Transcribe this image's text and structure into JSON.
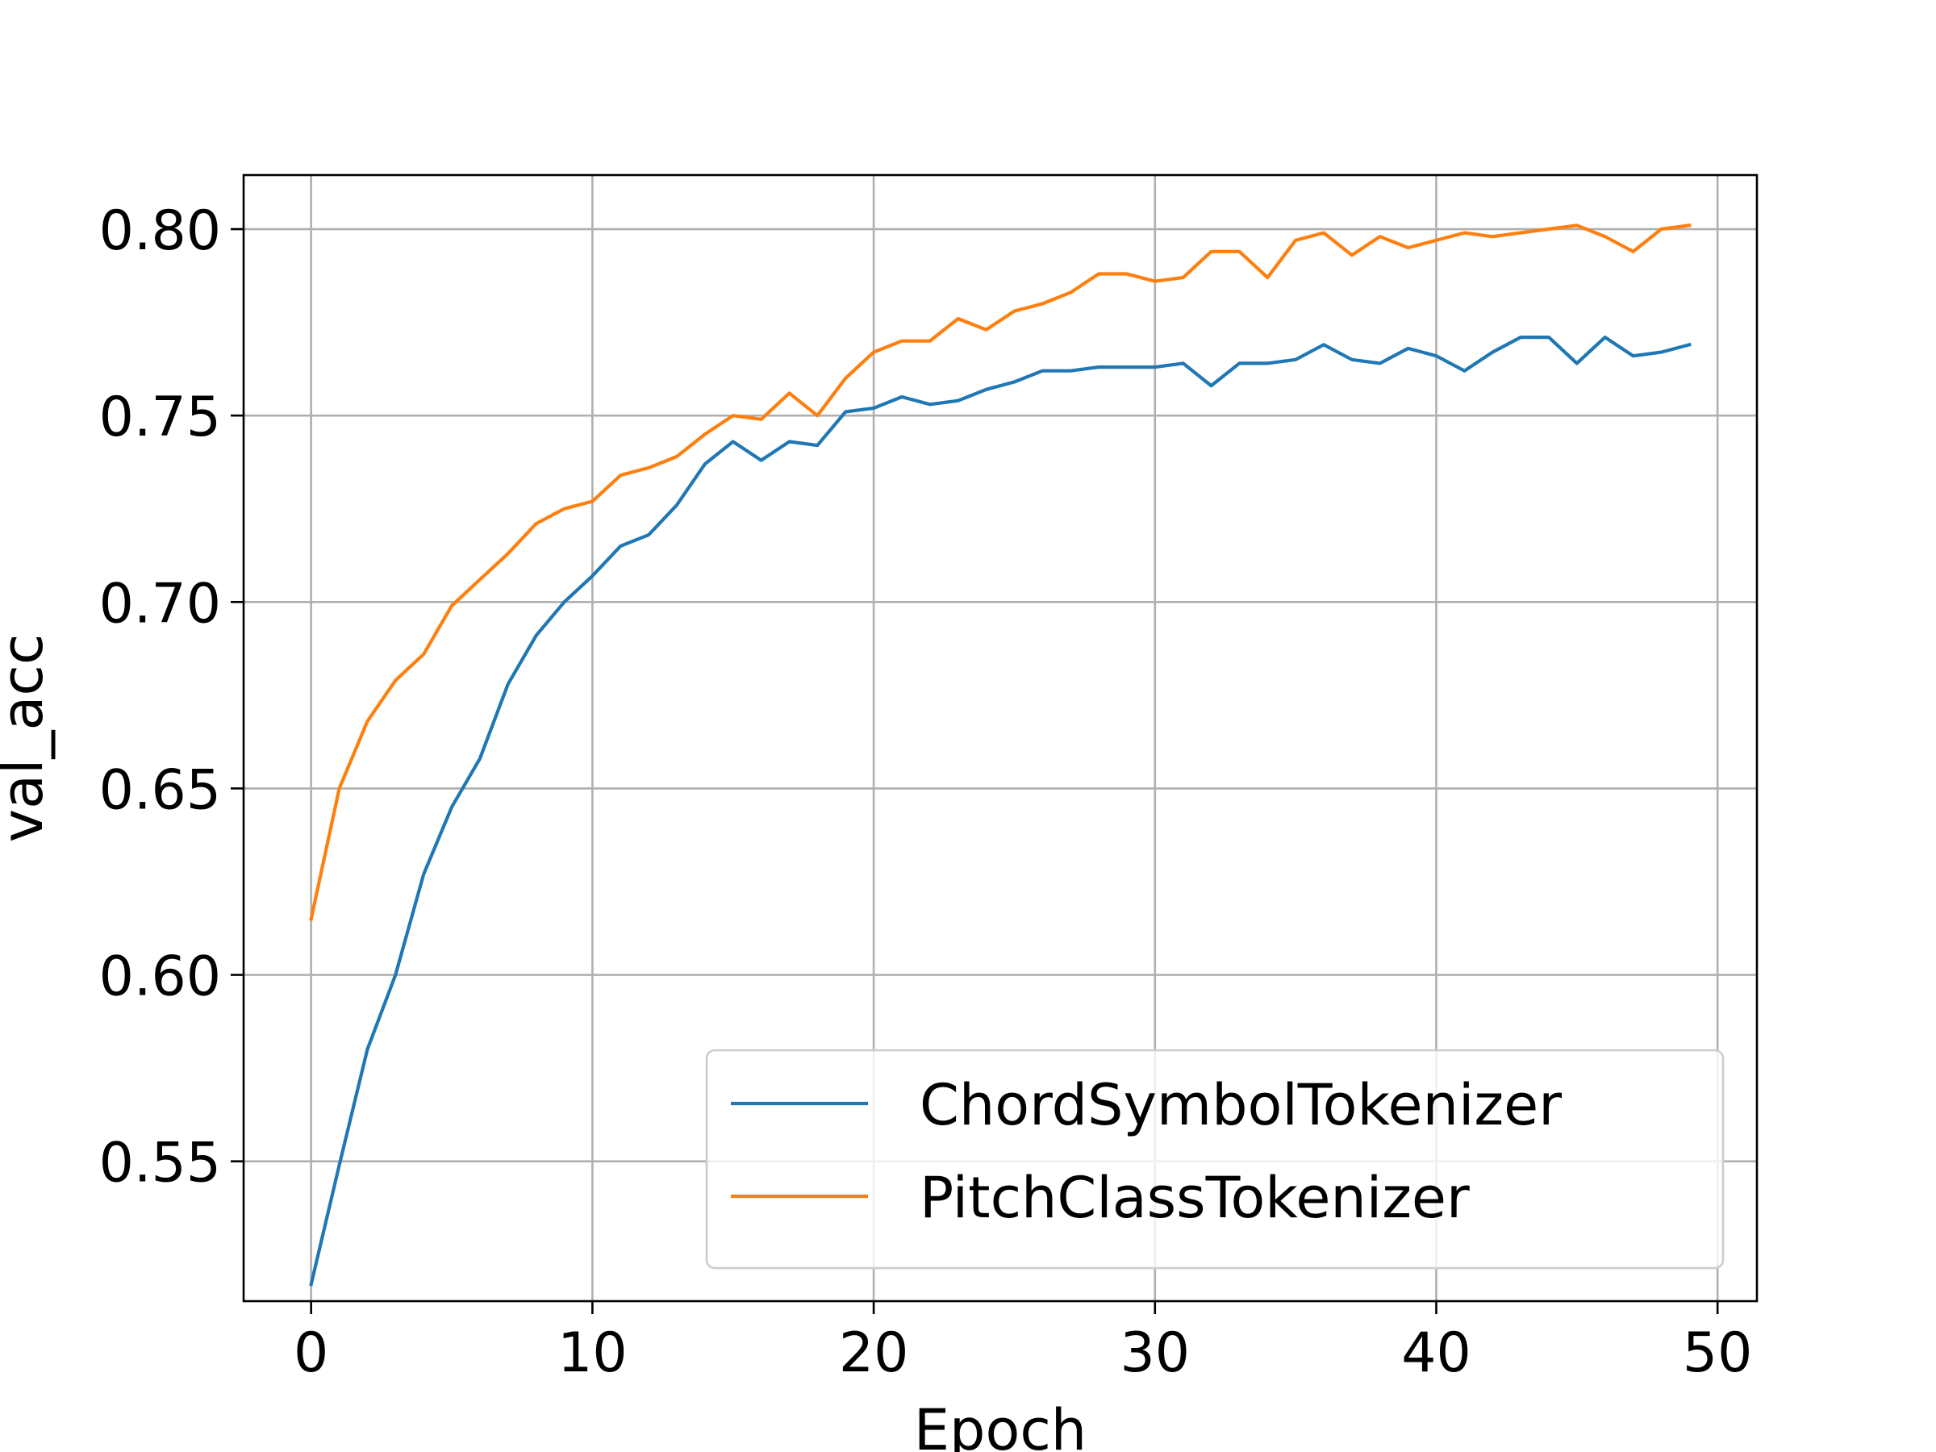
{
  "chart_data": {
    "type": "line",
    "xlabel": "Epoch",
    "ylabel": "val_acc",
    "xlim": [
      -2.4,
      51.4
    ],
    "ylim": [
      0.5125,
      0.8145
    ],
    "xticks": [
      0,
      10,
      20,
      30,
      40,
      50
    ],
    "xtick_labels": [
      "0",
      "10",
      "20",
      "30",
      "40",
      "50"
    ],
    "yticks": [
      0.55,
      0.6,
      0.65,
      0.7,
      0.75,
      0.8
    ],
    "ytick_labels": [
      "0.55",
      "0.60",
      "0.65",
      "0.70",
      "0.75",
      "0.80"
    ],
    "grid": true,
    "legend_position": "lower-right",
    "x": [
      0,
      1,
      2,
      3,
      4,
      5,
      6,
      7,
      8,
      9,
      10,
      11,
      12,
      13,
      14,
      15,
      16,
      17,
      18,
      19,
      20,
      21,
      22,
      23,
      24,
      25,
      26,
      27,
      28,
      29,
      30,
      31,
      32,
      33,
      34,
      35,
      36,
      37,
      38,
      39,
      40,
      41,
      42,
      43,
      44,
      45,
      46,
      47,
      48,
      49
    ],
    "series": [
      {
        "name": "ChordSymbolTokenizer",
        "color": "#1f77b4",
        "values": [
          0.517,
          0.549,
          0.58,
          0.6,
          0.627,
          0.645,
          0.658,
          0.678,
          0.691,
          0.7,
          0.707,
          0.715,
          0.718,
          0.726,
          0.737,
          0.743,
          0.738,
          0.743,
          0.742,
          0.751,
          0.752,
          0.755,
          0.753,
          0.754,
          0.757,
          0.759,
          0.762,
          0.762,
          0.763,
          0.763,
          0.763,
          0.764,
          0.758,
          0.764,
          0.764,
          0.765,
          0.769,
          0.765,
          0.764,
          0.768,
          0.766,
          0.762,
          0.767,
          0.771,
          0.771,
          0.764,
          0.771,
          0.766,
          0.767,
          0.769
        ]
      },
      {
        "name": "PitchClassTokenizer",
        "color": "#ff7f0e",
        "values": [
          0.615,
          0.65,
          0.668,
          0.679,
          0.686,
          0.699,
          0.706,
          0.713,
          0.721,
          0.725,
          0.727,
          0.734,
          0.736,
          0.739,
          0.745,
          0.75,
          0.749,
          0.756,
          0.75,
          0.76,
          0.767,
          0.77,
          0.77,
          0.776,
          0.773,
          0.778,
          0.78,
          0.783,
          0.788,
          0.788,
          0.786,
          0.787,
          0.794,
          0.794,
          0.787,
          0.797,
          0.799,
          0.793,
          0.798,
          0.795,
          0.797,
          0.799,
          0.798,
          0.799,
          0.8,
          0.801,
          0.798,
          0.794,
          0.8,
          0.801
        ]
      }
    ]
  }
}
